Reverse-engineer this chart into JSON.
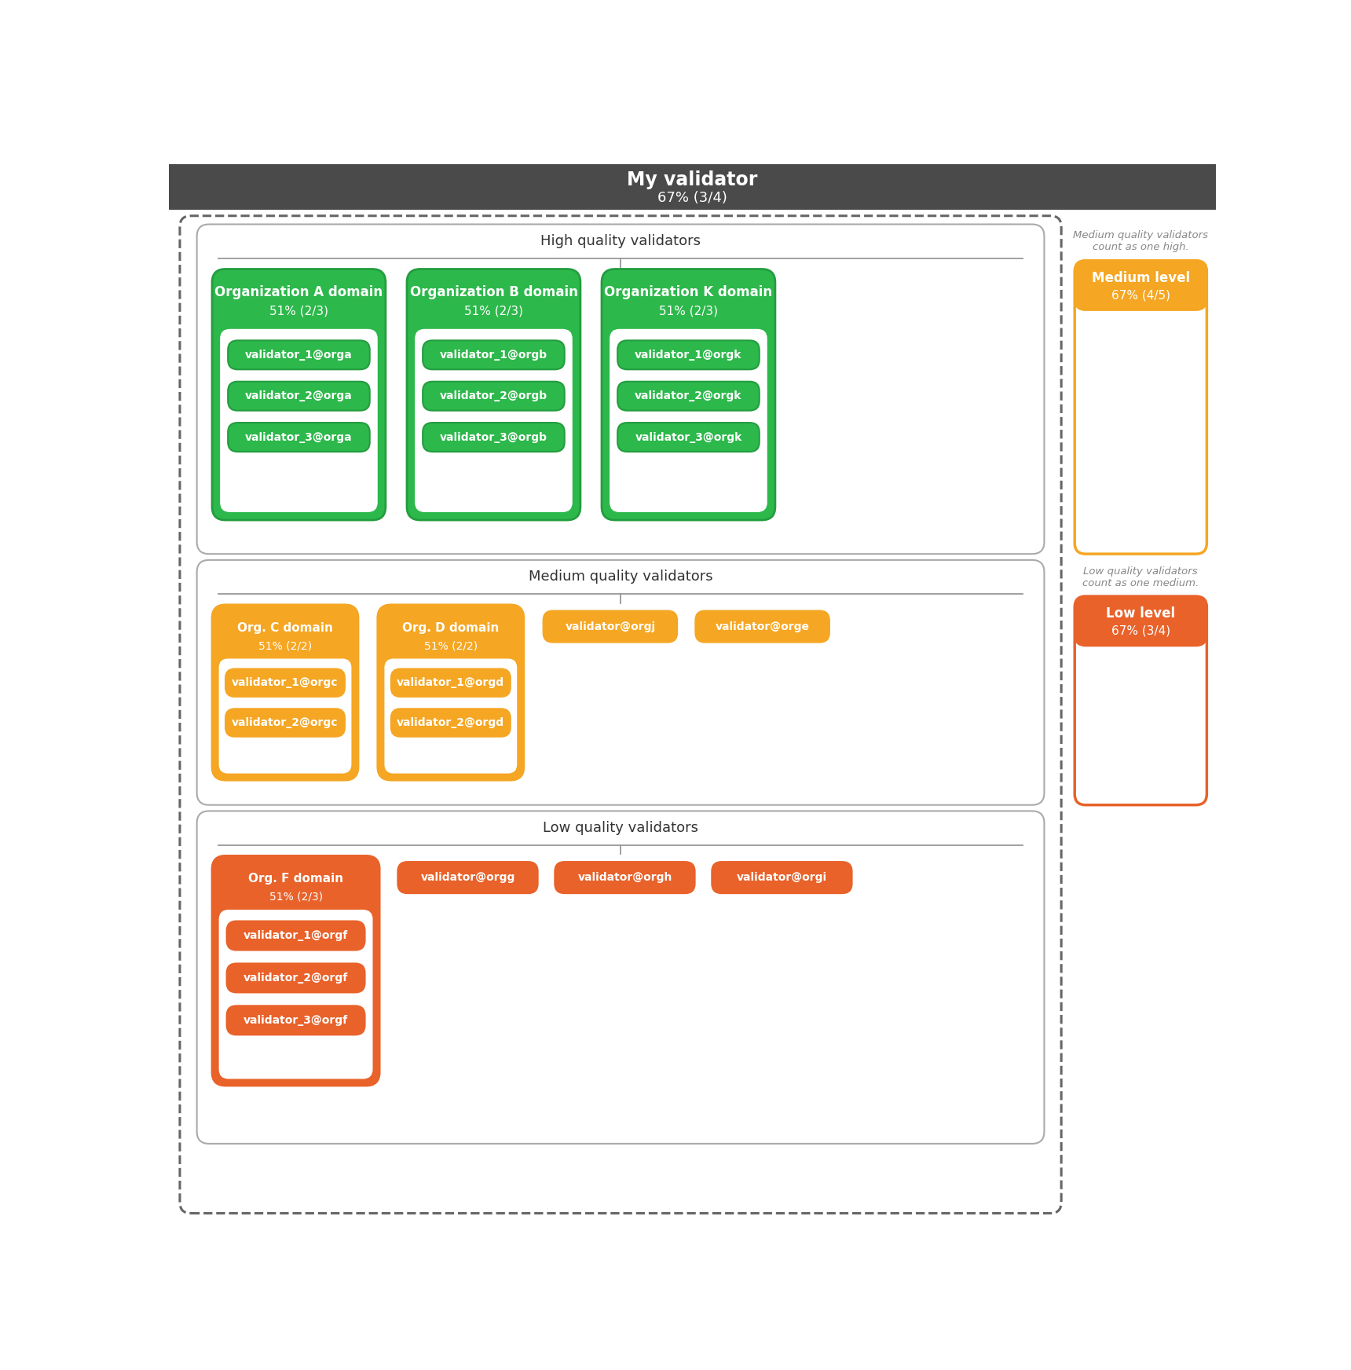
{
  "title": "My validator",
  "title_subtitle": "67% (3/4)",
  "header_bg": "#4a4a4a",
  "green": "#2db84b",
  "green_dark": "#27a844",
  "orange": "#f5a623",
  "red_orange": "#e8622a",
  "white": "#ffffff",
  "high_section_label": "High quality validators",
  "medium_section_label": "Medium quality validators",
  "low_section_label": "Low quality validators",
  "medium_note": "Medium quality validators\ncount as one high.",
  "low_note": "Low quality validators\ncount as one medium.",
  "org_a_title": "Organization A domain",
  "org_a_sub": "51% (2/3)",
  "org_a_validators": [
    "validator_1@orga",
    "validator_2@orga",
    "validator_3@orga"
  ],
  "org_b_title": "Organization B domain",
  "org_b_sub": "51% (2/3)",
  "org_b_validators": [
    "validator_1@orgb",
    "validator_2@orgb",
    "validator_3@orgb"
  ],
  "org_k_title": "Organization K domain",
  "org_k_sub": "51% (2/3)",
  "org_k_validators": [
    "validator_1@orgk",
    "validator_2@orgk",
    "validator_3@orgk"
  ],
  "medium_level_title": "Medium level",
  "medium_level_sub": "67% (4/5)",
  "org_c_title": "Org. C domain",
  "org_c_sub": "51% (2/2)",
  "org_c_validators": [
    "validator_1@orgc",
    "validator_2@orgc"
  ],
  "org_d_title": "Org. D domain",
  "org_d_sub": "51% (2/2)",
  "org_d_validators": [
    "validator_1@orgd",
    "validator_2@orgd"
  ],
  "medium_standalone": [
    "validator@orgj",
    "validator@orge"
  ],
  "low_level_title": "Low level",
  "low_level_sub": "67% (3/4)",
  "org_f_title": "Org. F domain",
  "org_f_sub": "51% (2/3)",
  "org_f_validators": [
    "validator_1@orgf",
    "validator_2@orgf",
    "validator_3@orgf"
  ],
  "low_standalone": [
    "validator@orgg",
    "validator@orgh",
    "validator@orgi"
  ]
}
